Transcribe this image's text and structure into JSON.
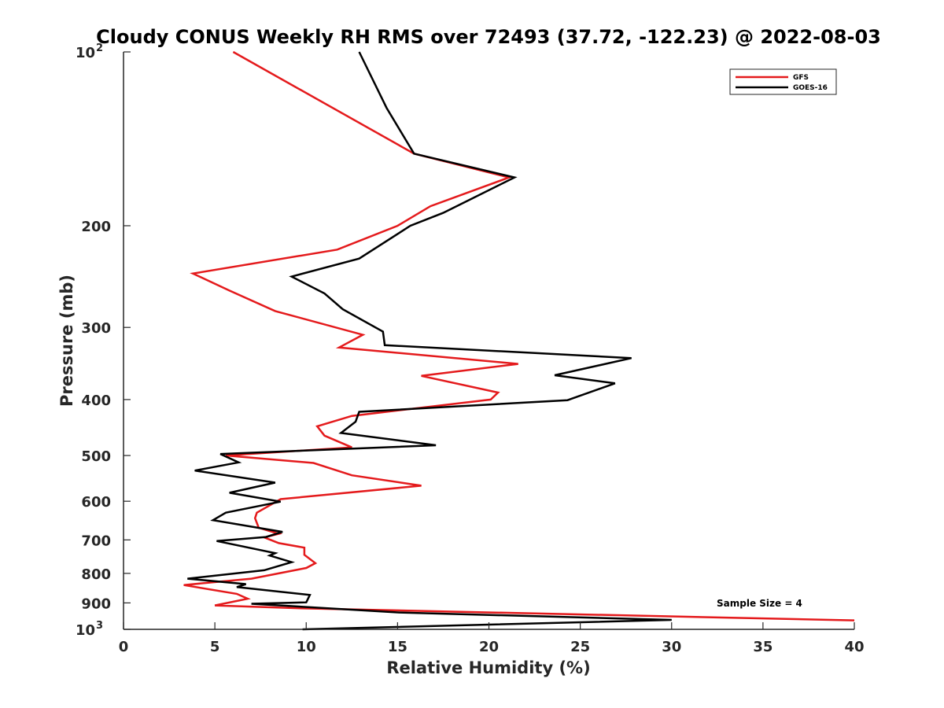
{
  "chart_data": {
    "type": "line",
    "title": "Cloudy CONUS Weekly RH RMS over 72493 (37.72, -122.23) @ 2022-08-03",
    "xlabel": "Relative Humidity (%)",
    "ylabel": "Pressure (mb)",
    "xlim": [
      0,
      40
    ],
    "ylim": [
      100,
      1000
    ],
    "y_scale": "log",
    "y_reversed": true,
    "x_ticks": [
      "0",
      "5",
      "10",
      "15",
      "20",
      "25",
      "30",
      "35",
      "40"
    ],
    "y_ticks": [
      {
        "value": 100,
        "base": "10",
        "exp": "2"
      },
      {
        "value": 200,
        "label": "200"
      },
      {
        "value": 300,
        "label": "300"
      },
      {
        "value": 400,
        "label": "400"
      },
      {
        "value": 500,
        "label": "500"
      },
      {
        "value": 600,
        "label": "600"
      },
      {
        "value": 700,
        "label": "700"
      },
      {
        "value": 800,
        "label": "800"
      },
      {
        "value": 900,
        "label": "900"
      },
      {
        "value": 1000,
        "base": "10",
        "exp": "3"
      }
    ],
    "legend_position": "top-right",
    "annotation": "Sample Size = 4",
    "series": [
      {
        "name": "GFS",
        "color": "#e41a1c",
        "points": [
          [
            6.0,
            100
          ],
          [
            15.9,
            150
          ],
          [
            21.1,
            165
          ],
          [
            16.8,
            185
          ],
          [
            15.0,
            200
          ],
          [
            11.7,
            220
          ],
          [
            3.8,
            242
          ],
          [
            5.8,
            259
          ],
          [
            8.3,
            281
          ],
          [
            13.1,
            309
          ],
          [
            11.8,
            325
          ],
          [
            21.6,
            347
          ],
          [
            16.3,
            364
          ],
          [
            20.5,
            389
          ],
          [
            20.1,
            400
          ],
          [
            12.5,
            427
          ],
          [
            10.6,
            445
          ],
          [
            11.0,
            462
          ],
          [
            12.5,
            484
          ],
          [
            5.6,
            500
          ],
          [
            10.4,
            515
          ],
          [
            12.5,
            541
          ],
          [
            16.3,
            564
          ],
          [
            8.6,
            595
          ],
          [
            7.3,
            628
          ],
          [
            7.2,
            642
          ],
          [
            7.4,
            667
          ],
          [
            8.5,
            683
          ],
          [
            7.7,
            693
          ],
          [
            8.5,
            709
          ],
          [
            9.9,
            722
          ],
          [
            9.9,
            743
          ],
          [
            10.5,
            768
          ],
          [
            10.0,
            783
          ],
          [
            7.0,
            817
          ],
          [
            3.3,
            838
          ],
          [
            6.2,
            868
          ],
          [
            6.8,
            885
          ],
          [
            5.0,
            909
          ],
          [
            9.9,
            920
          ],
          [
            40.0,
            965
          ]
        ]
      },
      {
        "name": "GOES-16",
        "color": "#000000",
        "points": [
          [
            12.9,
            100
          ],
          [
            14.4,
            125
          ],
          [
            15.9,
            150
          ],
          [
            21.4,
            165
          ],
          [
            17.5,
            190
          ],
          [
            15.7,
            200
          ],
          [
            12.9,
            228
          ],
          [
            9.2,
            245
          ],
          [
            11.0,
            262
          ],
          [
            12.0,
            279
          ],
          [
            14.2,
            305
          ],
          [
            14.3,
            322
          ],
          [
            27.8,
            339
          ],
          [
            23.6,
            363
          ],
          [
            26.9,
            375
          ],
          [
            24.3,
            401
          ],
          [
            12.9,
            420
          ],
          [
            12.7,
            437
          ],
          [
            11.9,
            457
          ],
          [
            17.1,
            480
          ],
          [
            5.3,
            497
          ],
          [
            6.3,
            514
          ],
          [
            3.9,
            531
          ],
          [
            8.3,
            557
          ],
          [
            5.8,
            580
          ],
          [
            8.6,
            601
          ],
          [
            5.6,
            628
          ],
          [
            4.9,
            647
          ],
          [
            8.7,
            678
          ],
          [
            7.8,
            692
          ],
          [
            5.1,
            703
          ],
          [
            8.3,
            738
          ],
          [
            8.0,
            745
          ],
          [
            9.2,
            765
          ],
          [
            7.7,
            790
          ],
          [
            3.5,
            817
          ],
          [
            6.7,
            835
          ],
          [
            6.2,
            845
          ],
          [
            10.2,
            872
          ],
          [
            10.0,
            898
          ],
          [
            7.0,
            903
          ],
          [
            15.1,
            935
          ],
          [
            30.0,
            963
          ],
          [
            9.8,
            1000
          ]
        ]
      }
    ]
  }
}
